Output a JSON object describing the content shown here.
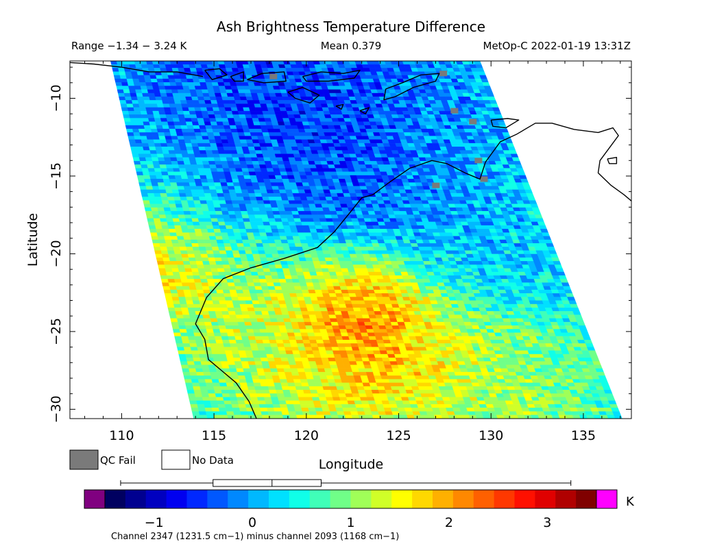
{
  "chart_data": {
    "type": "heatmap",
    "title": "Ash Brightness Temperature Difference",
    "stats": {
      "range_text": "Range −1.34 − 3.24 K",
      "mean_text": "Mean 0.379",
      "satellite_text": "MetOp-C 2022-01-19 13:31Z"
    },
    "xlabel": "Longitude",
    "ylabel": "Latitude",
    "xlim": [
      107.2,
      137.6
    ],
    "ylim": [
      -30.6,
      -7.6
    ],
    "x_ticks": [
      110,
      115,
      120,
      125,
      130,
      135
    ],
    "y_ticks": [
      -10,
      -15,
      -20,
      -25,
      -30
    ],
    "x_tick_labels": [
      "110",
      "115",
      "120",
      "125",
      "130",
      "135"
    ],
    "y_tick_labels": [
      "−10",
      "−15",
      "−20",
      "−25",
      "−30"
    ],
    "swath_edges": {
      "lat_top": -7.6,
      "lat_bottom": -30.6,
      "west_lon_top": 109.4,
      "west_lon_bottom": 113.9,
      "east_lon_top": 129.4,
      "east_lon_bottom": 137.1
    },
    "features": [
      {
        "lon": 111.5,
        "lat": -19.7,
        "value": 2.6,
        "radius": 2.4
      },
      {
        "lon": 116.0,
        "lat": -20.6,
        "value": 1.7,
        "radius": 3.0
      },
      {
        "lon": 123.0,
        "lat": -24.0,
        "value": 3.1,
        "radius": 1.9
      },
      {
        "lon": 122.5,
        "lat": -22.9,
        "value": 2.5,
        "radius": 2.4
      },
      {
        "lon": 124.0,
        "lat": -26.5,
        "value": 2.5,
        "radius": 2.2
      },
      {
        "lon": 121.5,
        "lat": -25.5,
        "value": 1.9,
        "radius": 3.2
      },
      {
        "lon": 118.5,
        "lat": -26.0,
        "value": 1.3,
        "radius": 3.4
      },
      {
        "lon": 127.5,
        "lat": -27.5,
        "value": 1.6,
        "radius": 3.0
      },
      {
        "lon": 131.5,
        "lat": -29.5,
        "value": 1.2,
        "radius": 3.0
      },
      {
        "lon": 116.5,
        "lat": -11.2,
        "value": -0.9,
        "radius": 4.0
      },
      {
        "lon": 121.0,
        "lat": -11.8,
        "value": -0.7,
        "radius": 4.5
      },
      {
        "lon": 121.5,
        "lat": -16.8,
        "value": -0.55,
        "radius": 3.8
      },
      {
        "lon": 117.5,
        "lat": -15.0,
        "value": -0.3,
        "radius": 3.5
      },
      {
        "lon": 113.5,
        "lat": -13.0,
        "value": 0.2,
        "radius": 3.5
      },
      {
        "lon": 111.5,
        "lat": -15.5,
        "value": 0.5,
        "radius": 2.5
      },
      {
        "lon": 130.0,
        "lat": -19.0,
        "value": 0.1,
        "radius": 3.5
      },
      {
        "lon": 127.0,
        "lat": -13.0,
        "value": 0.0,
        "radius": 3.0
      }
    ],
    "qc_fail_cells": [
      {
        "lon": 118.2,
        "lat": -8.6
      },
      {
        "lon": 127.4,
        "lat": -8.4
      },
      {
        "lon": 129.0,
        "lat": -11.5
      },
      {
        "lon": 128.0,
        "lat": -10.8
      },
      {
        "lon": 129.6,
        "lat": -15.2
      },
      {
        "lon": 127.0,
        "lat": -15.6
      },
      {
        "lon": 129.3,
        "lat": -14.0
      }
    ],
    "coastlines": [
      {
        "name": "australia-west-coast",
        "points": [
          [
            117.3,
            -30.6
          ],
          [
            116.9,
            -29.5
          ],
          [
            116.2,
            -28.3
          ],
          [
            115.4,
            -27.5
          ],
          [
            114.7,
            -26.8
          ],
          [
            114.5,
            -25.5
          ],
          [
            114.0,
            -24.5
          ],
          [
            114.6,
            -22.8
          ],
          [
            115.5,
            -21.6
          ],
          [
            117.0,
            -20.9
          ],
          [
            118.8,
            -20.3
          ],
          [
            120.6,
            -19.6
          ],
          [
            121.5,
            -18.6
          ],
          [
            122.4,
            -17.3
          ],
          [
            123.0,
            -16.4
          ],
          [
            123.6,
            -16.2
          ],
          [
            124.5,
            -15.4
          ],
          [
            125.6,
            -14.5
          ],
          [
            126.8,
            -14.0
          ],
          [
            127.6,
            -14.2
          ],
          [
            128.6,
            -14.8
          ],
          [
            129.4,
            -15.2
          ],
          [
            129.7,
            -14.1
          ],
          [
            130.5,
            -12.8
          ],
          [
            131.4,
            -12.3
          ],
          [
            132.4,
            -11.6
          ],
          [
            133.3,
            -11.6
          ],
          [
            134.5,
            -12.0
          ],
          [
            135.8,
            -12.2
          ],
          [
            136.6,
            -11.9
          ],
          [
            136.9,
            -12.4
          ],
          [
            136.4,
            -13.2
          ],
          [
            135.9,
            -14.0
          ],
          [
            135.8,
            -14.8
          ],
          [
            136.5,
            -15.6
          ],
          [
            137.2,
            -16.2
          ],
          [
            137.6,
            -16.6
          ]
        ]
      },
      {
        "name": "timor",
        "points": [
          [
            124.3,
            -9.4
          ],
          [
            125.2,
            -9.0
          ],
          [
            126.2,
            -8.5
          ],
          [
            127.2,
            -8.4
          ],
          [
            127.0,
            -8.9
          ],
          [
            125.8,
            -9.3
          ],
          [
            124.8,
            -9.9
          ],
          [
            124.2,
            -10.1
          ],
          [
            124.3,
            -9.4
          ]
        ]
      },
      {
        "name": "sumba",
        "points": [
          [
            119.0,
            -9.6
          ],
          [
            119.8,
            -9.3
          ],
          [
            120.7,
            -9.8
          ],
          [
            120.2,
            -10.3
          ],
          [
            119.4,
            -10.0
          ],
          [
            119.0,
            -9.6
          ]
        ]
      },
      {
        "name": "flores",
        "points": [
          [
            119.8,
            -8.6
          ],
          [
            120.8,
            -8.3
          ],
          [
            122.0,
            -8.4
          ],
          [
            122.9,
            -8.2
          ],
          [
            122.6,
            -8.7
          ],
          [
            121.2,
            -8.9
          ],
          [
            120.0,
            -8.9
          ],
          [
            119.8,
            -8.6
          ]
        ]
      },
      {
        "name": "sumbawa",
        "points": [
          [
            116.8,
            -8.8
          ],
          [
            117.6,
            -8.4
          ],
          [
            118.8,
            -8.3
          ],
          [
            118.9,
            -8.9
          ],
          [
            117.7,
            -9.0
          ],
          [
            116.8,
            -8.8
          ]
        ]
      },
      {
        "name": "lombok",
        "points": [
          [
            115.9,
            -8.6
          ],
          [
            116.6,
            -8.3
          ],
          [
            116.6,
            -8.9
          ],
          [
            116.1,
            -8.9
          ],
          [
            115.9,
            -8.6
          ]
        ]
      },
      {
        "name": "bali",
        "points": [
          [
            114.5,
            -8.2
          ],
          [
            115.3,
            -8.1
          ],
          [
            115.7,
            -8.5
          ],
          [
            114.9,
            -8.8
          ],
          [
            114.5,
            -8.2
          ]
        ]
      },
      {
        "name": "java-east",
        "points": [
          [
            107.2,
            -7.7
          ],
          [
            108.5,
            -7.8
          ],
          [
            110.0,
            -8.0
          ],
          [
            111.5,
            -8.3
          ],
          [
            113.0,
            -8.3
          ],
          [
            114.4,
            -8.6
          ]
        ]
      },
      {
        "name": "rote",
        "points": [
          [
            122.9,
            -10.8
          ],
          [
            123.4,
            -10.6
          ],
          [
            123.2,
            -11.0
          ],
          [
            122.9,
            -10.8
          ]
        ]
      },
      {
        "name": "savu",
        "points": [
          [
            121.6,
            -10.5
          ],
          [
            122.0,
            -10.4
          ],
          [
            121.9,
            -10.7
          ],
          [
            121.6,
            -10.5
          ]
        ]
      },
      {
        "name": "melville-island",
        "points": [
          [
            130.0,
            -11.4
          ],
          [
            130.9,
            -11.3
          ],
          [
            131.5,
            -11.4
          ],
          [
            130.8,
            -11.9
          ],
          [
            130.1,
            -11.8
          ],
          [
            130.0,
            -11.4
          ]
        ]
      },
      {
        "name": "groote-eylandt",
        "points": [
          [
            136.3,
            -13.9
          ],
          [
            136.8,
            -13.8
          ],
          [
            136.8,
            -14.2
          ],
          [
            136.4,
            -14.2
          ],
          [
            136.3,
            -13.9
          ]
        ]
      }
    ],
    "legend": [
      {
        "label": "QC Fail",
        "color": "#7a7a7a"
      },
      {
        "label": "No Data",
        "color": "#ffffff"
      }
    ],
    "colorbar": {
      "min": -1.5,
      "max": 3.5,
      "ticks": [
        -1,
        0,
        1,
        2,
        3
      ],
      "tick_labels": [
        "−1",
        "0",
        "1",
        "2",
        "3"
      ],
      "unit": "K",
      "colors": [
        "#000060",
        "#000090",
        "#0000c0",
        "#0000f0",
        "#0028ff",
        "#0058ff",
        "#0088ff",
        "#00b8ff",
        "#00e0ff",
        "#10ffe8",
        "#40ffb8",
        "#70ff88",
        "#a0ff58",
        "#d0ff28",
        "#ffff00",
        "#ffd800",
        "#ffb000",
        "#ff8800",
        "#ff6000",
        "#ff3800",
        "#ff1000",
        "#e00000",
        "#b00000",
        "#800000"
      ],
      "under_color": "#800080",
      "over_color": "#ff00ff",
      "caption": "Channel 2347 (1231.5 cm−1) minus channel 2093 (1168 cm−1)"
    },
    "boxplot": {
      "whisker_low": -1.34,
      "q1": -0.4,
      "median": 0.2,
      "q3": 0.7,
      "whisker_high": 3.24
    },
    "no_data_color": "#ffffff",
    "qc_fail_color": "#7a7a7a",
    "coast_color": "#000000"
  }
}
